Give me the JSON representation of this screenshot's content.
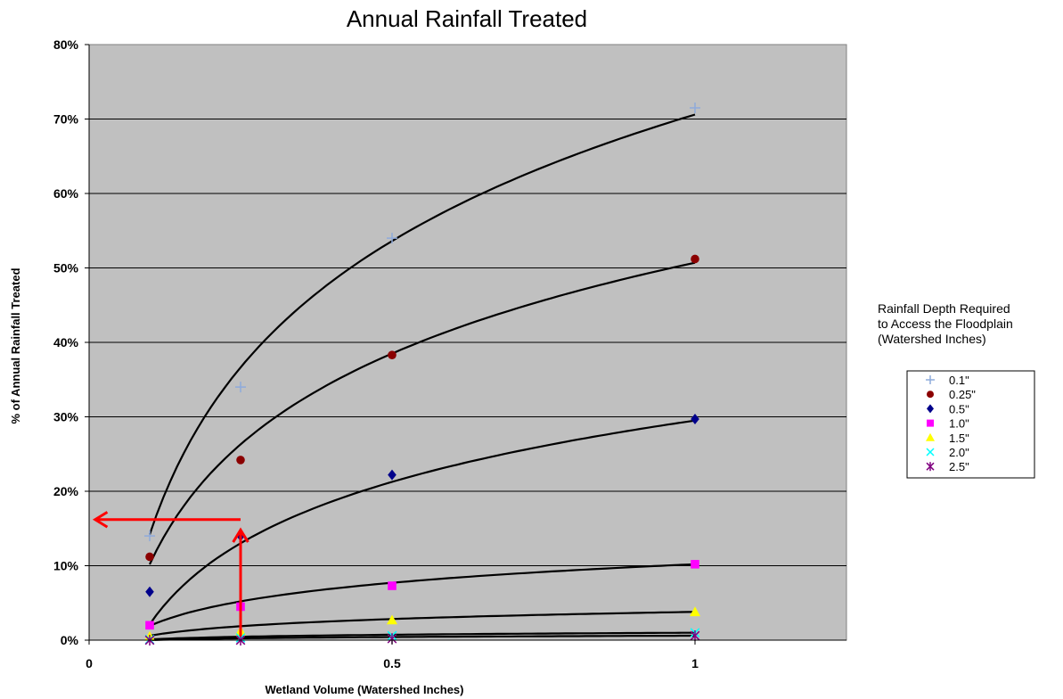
{
  "chart_data": {
    "type": "scatter",
    "title": "Annual Rainfall Treated",
    "xlabel": "Wetland Volume (Watershed Inches)",
    "ylabel": "% of Annual Rainfall Treated",
    "xlim": [
      0,
      1.25
    ],
    "ylim": [
      0,
      0.8
    ],
    "x_ticks": [
      0,
      0.5,
      1
    ],
    "x_tick_labels": [
      "0",
      "0.5",
      "1"
    ],
    "y_ticks": [
      0,
      0.1,
      0.2,
      0.3,
      0.4,
      0.5,
      0.6,
      0.7,
      0.8
    ],
    "y_tick_labels": [
      "0%",
      "10%",
      "20%",
      "30%",
      "40%",
      "50%",
      "60%",
      "70%",
      "80%"
    ],
    "grid": "horizontal",
    "plot_background": "#c0c0c0",
    "legend": {
      "title": "Rainfall Depth Required to Access the Floodplain (Watershed Inches)",
      "title_lines": [
        "Rainfall Depth Required",
        "to Access the Floodplain",
        "(Watershed Inches)"
      ],
      "placement": "right"
    },
    "series": [
      {
        "name": "0.1\"",
        "marker": "plus",
        "color": "#8eaadb",
        "x": [
          0.1,
          0.25,
          0.5,
          1
        ],
        "y": [
          0.14,
          0.34,
          0.54,
          0.715
        ],
        "trend": {
          "type": "log",
          "a": 0.706,
          "b": 0.245,
          "x_range": [
            0.1,
            1
          ]
        }
      },
      {
        "name": "0.25\"",
        "marker": "circle",
        "color": "#8b0000",
        "x": [
          0.1,
          0.25,
          0.5,
          1
        ],
        "y": [
          0.112,
          0.242,
          0.383,
          0.512
        ],
        "trend": {
          "type": "log",
          "a": 0.507,
          "b": 0.176,
          "x_range": [
            0.1,
            1
          ]
        }
      },
      {
        "name": "0.5\"",
        "marker": "diamond",
        "color": "#00008b",
        "x": [
          0.1,
          0.25,
          0.5,
          1
        ],
        "y": [
          0.065,
          0.14,
          0.222,
          0.297
        ],
        "trend": {
          "type": "log",
          "a": 0.295,
          "b": 0.1189,
          "x_range": [
            0.1,
            1
          ]
        }
      },
      {
        "name": "1.0\"",
        "marker": "square",
        "color": "#ff00ff",
        "x": [
          0.1,
          0.25,
          0.5,
          1
        ],
        "y": [
          0.02,
          0.045,
          0.073,
          0.102
        ],
        "trend": {
          "type": "log",
          "a": 0.102,
          "b": 0.036,
          "x_range": [
            0.1,
            1
          ]
        }
      },
      {
        "name": "1.5\"",
        "marker": "triangle",
        "color": "#ffff00",
        "x": [
          0.1,
          0.25,
          0.5,
          1
        ],
        "y": [
          0.005,
          0.012,
          0.027,
          0.038
        ],
        "trend": {
          "type": "log",
          "a": 0.038,
          "b": 0.0139,
          "x_range": [
            0.1,
            1
          ]
        }
      },
      {
        "name": "2.0\"",
        "marker": "x",
        "color": "#00ffff",
        "x": [
          0.1,
          0.25,
          0.5,
          1
        ],
        "y": [
          0.001,
          0.003,
          0.006,
          0.01
        ],
        "trend": {
          "type": "log",
          "a": 0.01,
          "b": 0.0039,
          "x_range": [
            0.1,
            1
          ]
        }
      },
      {
        "name": "2.5\"",
        "marker": "asterisk",
        "color": "#800080",
        "x": [
          0.1,
          0.25,
          0.5,
          1
        ],
        "y": [
          0,
          0,
          0.002,
          0.006
        ],
        "trend": {
          "type": "log",
          "a": 0.006,
          "b": 0.0026,
          "x_range": [
            0.1,
            1
          ]
        }
      }
    ],
    "annotations": [
      {
        "type": "arrow",
        "color": "#ff0000",
        "direction": "up",
        "from": [
          0.25,
          0.005
        ],
        "to": [
          0.25,
          0.148
        ]
      },
      {
        "type": "arrow",
        "color": "#ff0000",
        "direction": "left",
        "from": [
          0.25,
          0.162
        ],
        "to": [
          0.01,
          0.162
        ]
      }
    ]
  }
}
